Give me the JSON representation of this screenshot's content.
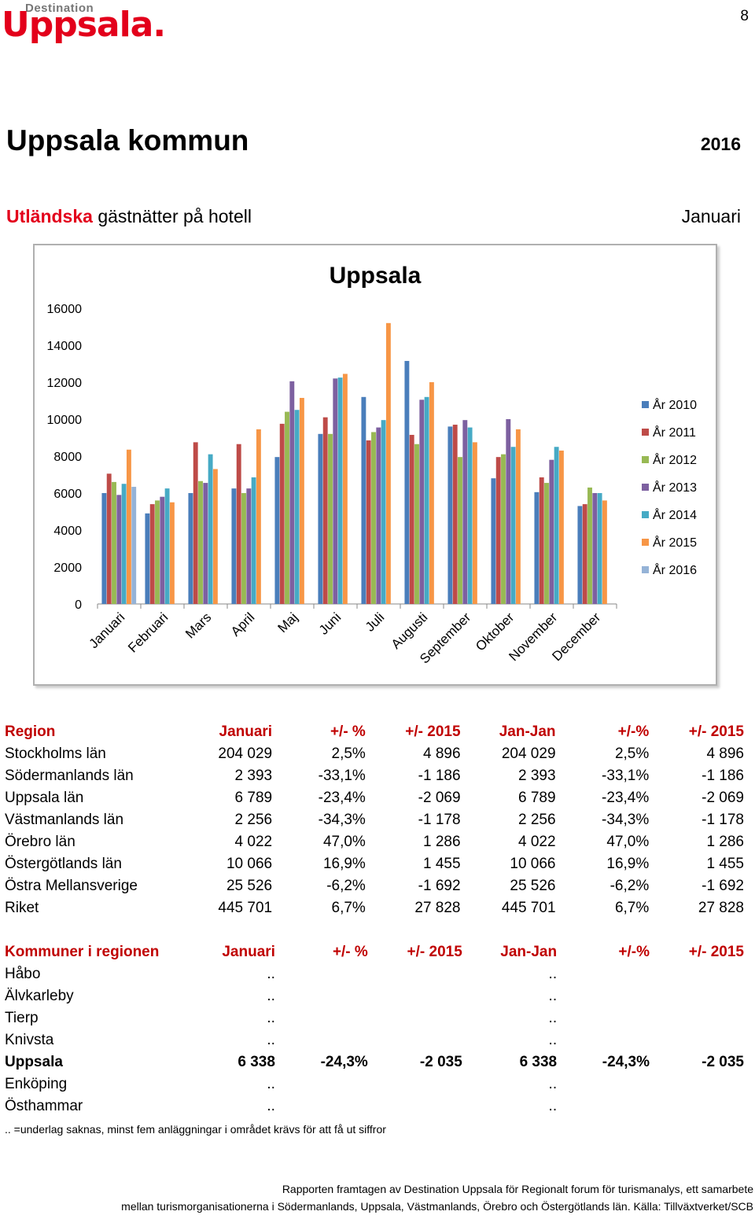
{
  "logo": {
    "top": "Destination",
    "main": "Uppsala."
  },
  "page_number": "8",
  "title": "Uppsala kommun",
  "year": "2016",
  "subtitle": {
    "red": "Utländska",
    "rest": " gästnätter på hotell"
  },
  "month": "Januari",
  "colors": {
    "accent": "#e3001b",
    "header_red": "#c00000"
  },
  "chart_data": {
    "type": "bar",
    "title": "Uppsala",
    "categories": [
      "Januari",
      "Februari",
      "Mars",
      "April",
      "Maj",
      "Juni",
      "Juli",
      "Augusti",
      "September",
      "Oktober",
      "November",
      "December"
    ],
    "ylim": [
      0,
      16000
    ],
    "yticks": [
      "0",
      "2000",
      "4000",
      "6000",
      "8000",
      "10000",
      "12000",
      "14000",
      "16000"
    ],
    "legend_position": "right",
    "series": [
      {
        "name": "År 2010",
        "color": "#4a7ebb",
        "values": [
          6000,
          4900,
          6000,
          6250,
          7950,
          9200,
          11200,
          13150,
          9600,
          6800,
          6050,
          5300
        ]
      },
      {
        "name": "År 2011",
        "color": "#be4b48",
        "values": [
          7050,
          5400,
          8750,
          8650,
          9750,
          10100,
          8850,
          9150,
          9700,
          7950,
          6850,
          5400
        ]
      },
      {
        "name": "År 2012",
        "color": "#98b954",
        "values": [
          6600,
          5600,
          6650,
          6000,
          10400,
          9200,
          9300,
          8650,
          7950,
          8100,
          6550,
          6300
        ]
      },
      {
        "name": "År 2013",
        "color": "#7d60a0",
        "values": [
          5900,
          5800,
          6550,
          6250,
          12050,
          12200,
          9550,
          11050,
          9950,
          10000,
          7800,
          6000
        ]
      },
      {
        "name": "År 2014",
        "color": "#46aac5",
        "values": [
          6500,
          6250,
          8100,
          6850,
          10500,
          12250,
          9950,
          11200,
          9550,
          8500,
          8500,
          6000
        ]
      },
      {
        "name": "År 2015",
        "color": "#f79646",
        "values": [
          8350,
          5500,
          7300,
          9450,
          11150,
          12450,
          15200,
          12000,
          8750,
          9450,
          8300,
          5600
        ]
      },
      {
        "name": "År 2016",
        "color": "#95b3d7",
        "values": [
          6338,
          null,
          null,
          null,
          null,
          null,
          null,
          null,
          null,
          null,
          null,
          null
        ]
      }
    ]
  },
  "regions": {
    "headers": [
      "Region",
      "Januari",
      "+/- %",
      "+/- 2015",
      "Jan-Jan",
      "+/-%",
      "+/- 2015"
    ],
    "rows": [
      [
        "Stockholms län",
        "204 029",
        "2,5%",
        "4 896",
        "204 029",
        "2,5%",
        "4 896"
      ],
      [
        "Södermanlands län",
        "2 393",
        "-33,1%",
        "-1 186",
        "2 393",
        "-33,1%",
        "-1 186"
      ],
      [
        "Uppsala län",
        "6 789",
        "-23,4%",
        "-2 069",
        "6 789",
        "-23,4%",
        "-2 069"
      ],
      [
        "Västmanlands län",
        "2 256",
        "-34,3%",
        "-1 178",
        "2 256",
        "-34,3%",
        "-1 178"
      ],
      [
        "Örebro län",
        "4 022",
        "47,0%",
        "1 286",
        "4 022",
        "47,0%",
        "1 286"
      ],
      [
        "Östergötlands län",
        "10 066",
        "16,9%",
        "1 455",
        "10 066",
        "16,9%",
        "1 455"
      ],
      [
        "Östra Mellansverige",
        "25 526",
        "-6,2%",
        "-1 692",
        "25 526",
        "-6,2%",
        "-1 692"
      ],
      [
        "Riket",
        "445 701",
        "6,7%",
        "27 828",
        "445 701",
        "6,7%",
        "27 828"
      ]
    ]
  },
  "kommuner": {
    "headers": [
      "Kommuner i regionen",
      "Januari",
      "+/- %",
      "+/- 2015",
      "Jan-Jan",
      "+/-%",
      "+/- 2015"
    ],
    "rows": [
      [
        "Håbo",
        "..",
        "",
        "",
        "..",
        "",
        ""
      ],
      [
        "Älvkarleby",
        "..",
        "",
        "",
        "..",
        "",
        ""
      ],
      [
        "Tierp",
        "..",
        "",
        "",
        "..",
        "",
        ""
      ],
      [
        "Knivsta",
        "..",
        "",
        "",
        "..",
        "",
        ""
      ],
      [
        "Uppsala",
        "6 338",
        "-24,3%",
        "-2 035",
        "6 338",
        "-24,3%",
        "-2 035"
      ],
      [
        "Enköping",
        "..",
        "",
        "",
        "..",
        "",
        ""
      ],
      [
        "Östhammar",
        "..",
        "",
        "",
        "..",
        "",
        ""
      ]
    ]
  },
  "note": ".. =underlag saknas,  minst fem anläggningar i området krävs för att få ut siffror",
  "footer": {
    "line1": "Rapporten framtagen av Destination Uppsala för Regionalt forum för turismanalys, ett samarbete",
    "line2": "mellan turismorganisationerna i Södermanlands, Uppsala, Västmanlands, Örebro och Östergötlands län. Källa: Tillväxtverket/SCB"
  }
}
